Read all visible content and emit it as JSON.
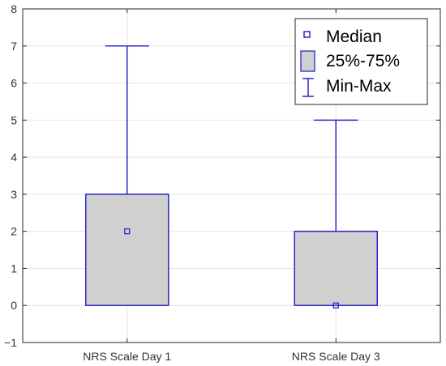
{
  "chart_data": {
    "type": "box",
    "categories": [
      "NRS Scale Day 1",
      "NRS Scale Day 3"
    ],
    "boxes": [
      {
        "category": "NRS Scale Day 1",
        "min": 0,
        "q1": 0,
        "median": 2,
        "q3": 3,
        "max": 7
      },
      {
        "category": "NRS Scale Day 3",
        "min": 0,
        "q1": 0,
        "median": 0,
        "q3": 2,
        "max": 5
      }
    ],
    "ylim": [
      -1,
      8
    ],
    "yticks": [
      -1,
      0,
      1,
      2,
      3,
      4,
      5,
      6,
      7,
      8
    ],
    "ytick_labels": [
      "−1",
      "0",
      "1",
      "2",
      "3",
      "4",
      "5",
      "6",
      "7",
      "8"
    ],
    "grid": true,
    "legend": {
      "placement": "top-right",
      "entries": [
        {
          "label": "Median",
          "symbol": "square-marker"
        },
        {
          "label": "25%-75%",
          "symbol": "filled-box"
        },
        {
          "label": "Min-Max",
          "symbol": "whisker"
        }
      ]
    },
    "colors": {
      "line": "#2727cc",
      "box_fill": "#d0d0d0",
      "grid": "#e4e4e4",
      "axis": "#262626"
    }
  }
}
